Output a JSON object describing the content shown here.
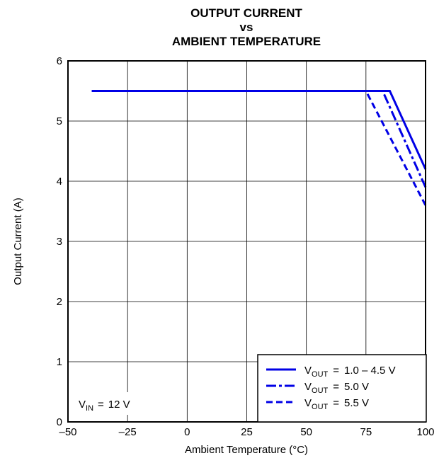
{
  "chart_data": {
    "type": "line",
    "title_lines": [
      "OUTPUT CURRENT",
      "vs",
      "AMBIENT TEMPERATURE"
    ],
    "xlabel": "Ambient Temperature (°C)",
    "ylabel": "Output Current (A)",
    "xlim": [
      -50,
      100
    ],
    "ylim": [
      0,
      6
    ],
    "x_ticks": [
      -50,
      -25,
      0,
      25,
      50,
      75,
      100
    ],
    "x_tick_labels": [
      "–50",
      "–25",
      "0",
      "25",
      "50",
      "75",
      "100"
    ],
    "y_ticks": [
      0,
      1,
      2,
      3,
      4,
      5,
      6
    ],
    "y_tick_labels": [
      "0",
      "1",
      "2",
      "3",
      "4",
      "5",
      "6"
    ],
    "grid": true,
    "legend_position": "bottom-right",
    "color": "#0000e6",
    "series": [
      {
        "sym": "V",
        "sub": "OUT",
        "eq": "=",
        "value": "1.0 – 4.5 V",
        "style": "solid",
        "points": [
          [
            -40,
            5.5
          ],
          [
            85,
            5.5
          ],
          [
            100,
            4.2
          ]
        ]
      },
      {
        "sym": "V",
        "sub": "OUT",
        "eq": "=",
        "value": "5.0 V",
        "style": "dashdot",
        "points": [
          [
            -40,
            5.5
          ],
          [
            82,
            5.5
          ],
          [
            100,
            3.9
          ]
        ]
      },
      {
        "sym": "V",
        "sub": "OUT",
        "eq": "=",
        "value": "5.5 V",
        "style": "dash",
        "points": [
          [
            -40,
            5.5
          ],
          [
            75,
            5.5
          ],
          [
            100,
            3.6
          ]
        ]
      }
    ],
    "annotation": {
      "sym": "V",
      "sub": "IN",
      "eq": "=",
      "value": "12 V"
    }
  }
}
